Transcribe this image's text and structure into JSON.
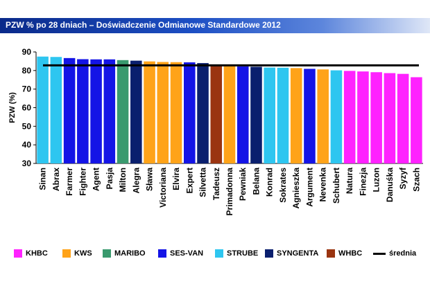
{
  "title": "PZW % po 28 dniach – Doświadczenie Odmianowe Standardowe 2012",
  "chart_data": {
    "type": "bar",
    "title": "PZW % po 28 dniach – Doświadczenie Odmianowe Standardowe 2012",
    "xlabel": "",
    "ylabel": "PZW (%)",
    "ylim": [
      30,
      90
    ],
    "yticks": [
      30,
      40,
      50,
      60,
      70,
      80,
      90
    ],
    "grid": false,
    "legend_position": "bottom",
    "categories": [
      "Sinan",
      "Abrax",
      "Farmer",
      "Fighter",
      "Agent",
      "Pasja",
      "Milton",
      "Alegra",
      "Sława",
      "Victoriana",
      "Elvira",
      "Expert",
      "Silvetta",
      "Tadeusz",
      "Primadonna",
      "Pewniak",
      "Belana",
      "Konrad",
      "Sokrates",
      "Agnieszka",
      "Argument",
      "Nevenka",
      "Schubert",
      "Natura",
      "Finezja",
      "Luzon",
      "Danuśka",
      "Syzyf",
      "Szach"
    ],
    "values": [
      87.5,
      87.3,
      86.7,
      86.1,
      86.0,
      86.0,
      85.6,
      85.3,
      84.9,
      84.6,
      84.5,
      84.4,
      84.0,
      83.0,
      82.6,
      82.2,
      82.0,
      81.6,
      81.5,
      81.3,
      80.9,
      80.6,
      80.1,
      79.8,
      79.5,
      79.1,
      78.6,
      78.2,
      76.4
    ],
    "companies": [
      "STRUBE",
      "STRUBE",
      "SES-VAN",
      "SES-VAN",
      "SES-VAN",
      "SES-VAN",
      "MARIBO",
      "SYNGENTA",
      "KWS",
      "KWS",
      "KWS",
      "SES-VAN",
      "SYNGENTA",
      "WHBC",
      "KWS",
      "SES-VAN",
      "SYNGENTA",
      "STRUBE",
      "STRUBE",
      "KWS",
      "SES-VAN",
      "KWS",
      "STRUBE",
      "KHBC",
      "KHBC",
      "KHBC",
      "KHBC",
      "KHBC",
      "KHBC"
    ],
    "average": 82.8,
    "series": [
      {
        "name": "KHBC",
        "color": "#ff22ff"
      },
      {
        "name": "KWS",
        "color": "#ffa319"
      },
      {
        "name": "MARIBO",
        "color": "#3a9a6e"
      },
      {
        "name": "SES-VAN",
        "color": "#1414e6"
      },
      {
        "name": "STRUBE",
        "color": "#2ec6f0"
      },
      {
        "name": "SYNGENTA",
        "color": "#0a1f6e"
      },
      {
        "name": "WHBC",
        "color": "#9a3410"
      },
      {
        "name": "średnia",
        "color": "#000000"
      }
    ]
  }
}
